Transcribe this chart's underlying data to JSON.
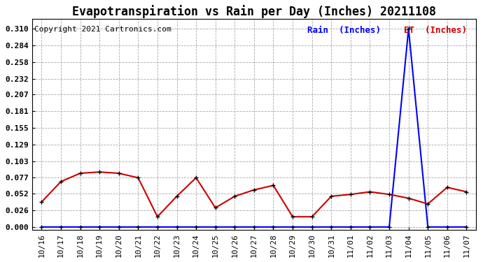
{
  "title": "Evapotranspiration vs Rain per Day (Inches) 20211108",
  "copyright": "Copyright 2021 Cartronics.com",
  "legend_rain": "Rain  (Inches)",
  "legend_et": "ET  (Inches)",
  "background_color": "#ffffff",
  "grid_color": "#aaaaaa",
  "x_labels": [
    "10/16",
    "10/17",
    "10/18",
    "10/19",
    "10/20",
    "10/21",
    "10/22",
    "10/23",
    "10/24",
    "10/25",
    "10/26",
    "10/27",
    "10/28",
    "10/29",
    "10/30",
    "10/31",
    "11/01",
    "11/02",
    "11/03",
    "11/04",
    "11/05",
    "11/06",
    "11/07"
  ],
  "rain_data": [
    0.0,
    0.0,
    0.0,
    0.0,
    0.0,
    0.0,
    0.0,
    0.0,
    0.0,
    0.0,
    0.0,
    0.0,
    0.0,
    0.0,
    0.0,
    0.0,
    0.0,
    0.0,
    0.0,
    0.31,
    0.0,
    0.0,
    0.0
  ],
  "et_data": [
    0.039,
    0.071,
    0.084,
    0.086,
    0.084,
    0.077,
    0.016,
    0.048,
    0.077,
    0.03,
    0.048,
    0.058,
    0.065,
    0.016,
    0.016,
    0.048,
    0.051,
    0.055,
    0.051,
    0.045,
    0.036,
    0.062,
    0.055
  ],
  "y_ticks": [
    0.0,
    0.026,
    0.052,
    0.077,
    0.103,
    0.129,
    0.155,
    0.181,
    0.207,
    0.232,
    0.258,
    0.284,
    0.31
  ],
  "ylim_min": -0.005,
  "ylim_max": 0.325,
  "rain_color": "#0000ff",
  "et_color": "#cc0000",
  "marker_color": "#000000",
  "title_fontsize": 12,
  "tick_fontsize": 8,
  "copyright_fontsize": 8,
  "legend_fontsize": 9
}
